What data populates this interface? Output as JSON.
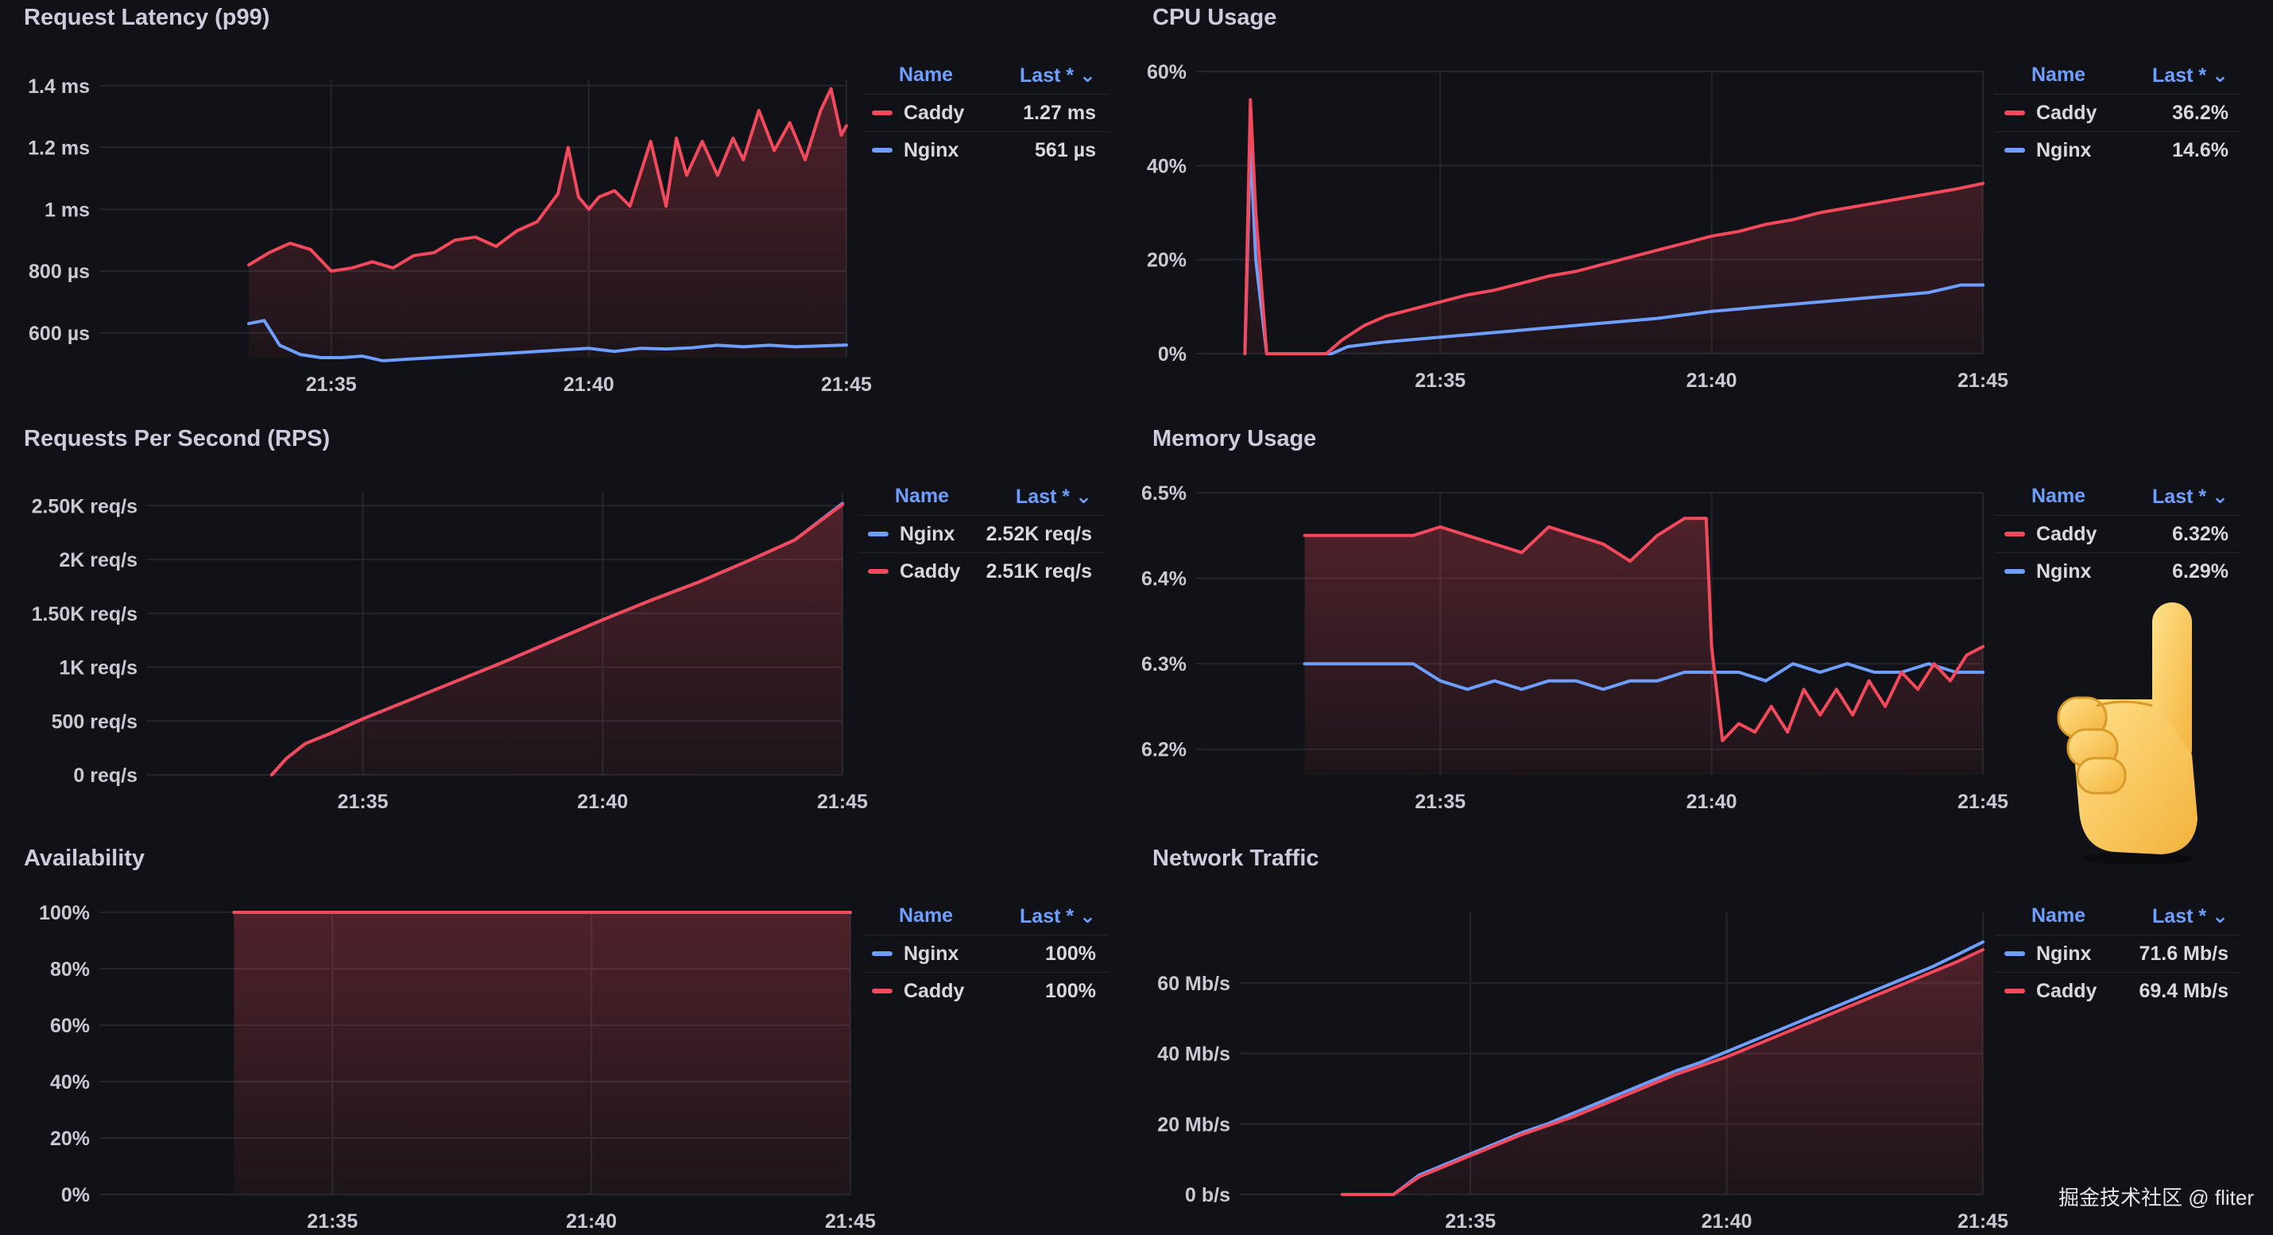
{
  "colors": {
    "caddy": "#f2495c",
    "nginx": "#6e9fff",
    "grid": "#24262d",
    "axis_text": "#c8c9d3"
  },
  "legend_headers": {
    "name": "Name",
    "last": "Last *"
  },
  "panels": {
    "latency": {
      "title": "Request Latency (p99)",
      "legend": [
        {
          "name": "Caddy",
          "value": "1.27 ms",
          "color": "#f2495c"
        },
        {
          "name": "Nginx",
          "value": "561 µs",
          "color": "#6e9fff"
        }
      ]
    },
    "cpu": {
      "title": "CPU Usage",
      "legend": [
        {
          "name": "Caddy",
          "value": "36.2%",
          "color": "#f2495c"
        },
        {
          "name": "Nginx",
          "value": "14.6%",
          "color": "#6e9fff"
        }
      ]
    },
    "rps": {
      "title": "Requests Per Second (RPS)",
      "legend": [
        {
          "name": "Nginx",
          "value": "2.52K req/s",
          "color": "#6e9fff"
        },
        {
          "name": "Caddy",
          "value": "2.51K req/s",
          "color": "#f2495c"
        }
      ]
    },
    "memory": {
      "title": "Memory Usage",
      "legend": [
        {
          "name": "Caddy",
          "value": "6.32%",
          "color": "#f2495c"
        },
        {
          "name": "Nginx",
          "value": "6.29%",
          "color": "#6e9fff"
        }
      ]
    },
    "availability": {
      "title": "Availability",
      "legend": [
        {
          "name": "Nginx",
          "value": "100%",
          "color": "#6e9fff"
        },
        {
          "name": "Caddy",
          "value": "100%",
          "color": "#f2495c"
        }
      ]
    },
    "network": {
      "title": "Network Traffic",
      "legend": [
        {
          "name": "Nginx",
          "value": "71.6 Mb/s",
          "color": "#6e9fff"
        },
        {
          "name": "Caddy",
          "value": "69.4 Mb/s",
          "color": "#f2495c"
        }
      ]
    }
  },
  "watermark": "掘金技术社区 @ fliter",
  "chart_data": [
    {
      "id": "latency",
      "type": "line",
      "title": "Request Latency (p99)",
      "xlim": [
        30.5,
        45
      ],
      "ylim": [
        520,
        1420
      ],
      "x_ticks": [
        35,
        40,
        45
      ],
      "x_tick_labels": [
        "21:35",
        "21:40",
        "21:45"
      ],
      "y_ticks": [
        600,
        800,
        1000,
        1200,
        1400
      ],
      "y_tick_labels": [
        "600 µs",
        "800 µs",
        "1 ms",
        "1.2 ms",
        "1.4 ms"
      ],
      "series": [
        {
          "name": "Caddy",
          "color": "#f2495c",
          "fill": true,
          "x": [
            33.4,
            33.8,
            34.2,
            34.6,
            35,
            35.4,
            35.8,
            36.2,
            36.6,
            37,
            37.4,
            37.8,
            38.2,
            38.6,
            39,
            39.4,
            39.6,
            39.8,
            40,
            40.2,
            40.5,
            40.8,
            41.2,
            41.5,
            41.7,
            41.9,
            42.2,
            42.5,
            42.8,
            43,
            43.3,
            43.6,
            43.9,
            44.2,
            44.5,
            44.7,
            44.9,
            45
          ],
          "y": [
            820,
            860,
            890,
            870,
            800,
            810,
            830,
            810,
            850,
            860,
            900,
            910,
            880,
            930,
            960,
            1050,
            1200,
            1040,
            1000,
            1040,
            1060,
            1010,
            1220,
            1010,
            1230,
            1110,
            1220,
            1110,
            1230,
            1160,
            1320,
            1190,
            1280,
            1160,
            1320,
            1390,
            1240,
            1270
          ]
        },
        {
          "name": "Nginx",
          "color": "#6e9fff",
          "fill": false,
          "x": [
            33.4,
            33.7,
            34,
            34.4,
            34.8,
            35.2,
            35.6,
            36,
            36.5,
            37,
            37.5,
            38,
            38.5,
            39,
            39.5,
            40,
            40.5,
            41,
            41.5,
            42,
            42.5,
            43,
            43.5,
            44,
            44.5,
            45
          ],
          "y": [
            630,
            640,
            560,
            530,
            520,
            520,
            525,
            510,
            515,
            520,
            525,
            530,
            535,
            540,
            545,
            550,
            540,
            550,
            548,
            552,
            560,
            555,
            560,
            555,
            558,
            561
          ]
        }
      ]
    },
    {
      "id": "cpu",
      "type": "line",
      "title": "CPU Usage",
      "xlim": [
        30.5,
        45
      ],
      "ylim": [
        0,
        60
      ],
      "x_ticks": [
        35,
        40,
        45
      ],
      "x_tick_labels": [
        "21:35",
        "21:40",
        "21:45"
      ],
      "y_ticks": [
        0,
        20,
        40,
        60
      ],
      "y_tick_labels": [
        "0%",
        "20%",
        "40%",
        "60%"
      ],
      "series": [
        {
          "name": "Caddy",
          "color": "#f2495c",
          "fill": true,
          "x": [
            31.4,
            31.5,
            31.6,
            31.8,
            32.2,
            32.6,
            32.9,
            33.2,
            33.6,
            34,
            34.5,
            35,
            35.5,
            36,
            36.5,
            37,
            37.5,
            38,
            38.5,
            39,
            39.5,
            40,
            40.5,
            41,
            41.5,
            42,
            42.5,
            43,
            43.5,
            44,
            44.5,
            45
          ],
          "y": [
            0,
            54,
            30,
            0,
            0,
            0,
            0,
            3,
            6,
            8,
            9.5,
            11,
            12.5,
            13.5,
            15,
            16.5,
            17.5,
            19,
            20.5,
            22,
            23.5,
            25,
            26,
            27.5,
            28.5,
            30,
            31,
            32,
            33,
            34,
            35,
            36.2
          ]
        },
        {
          "name": "Nginx",
          "color": "#6e9fff",
          "fill": false,
          "x": [
            31.4,
            31.5,
            31.6,
            31.8,
            32.2,
            32.6,
            33,
            33.3,
            34,
            35,
            36,
            37,
            38,
            39,
            40,
            41,
            42,
            43,
            44,
            44.6,
            45
          ],
          "y": [
            0,
            45,
            20,
            0,
            0,
            0,
            0,
            1.5,
            2.5,
            3.5,
            4.5,
            5.5,
            6.5,
            7.5,
            9,
            10,
            11,
            12,
            13,
            14.6,
            14.6
          ]
        }
      ]
    },
    {
      "id": "rps",
      "type": "line",
      "title": "Requests Per Second (RPS)",
      "xlim": [
        30.5,
        45
      ],
      "ylim": [
        0,
        2620
      ],
      "x_ticks": [
        35,
        40,
        45
      ],
      "x_tick_labels": [
        "21:35",
        "21:40",
        "21:45"
      ],
      "y_ticks": [
        0,
        500,
        1000,
        1500,
        2000,
        2500
      ],
      "y_tick_labels": [
        "0 req/s",
        "500 req/s",
        "1K req/s",
        "1.50K req/s",
        "2K req/s",
        "2.50K req/s"
      ],
      "series": [
        {
          "name": "Caddy",
          "color": "#f2495c",
          "fill": true,
          "x": [
            33.1,
            33.4,
            33.8,
            34.3,
            35,
            36,
            37,
            38,
            39,
            40,
            41,
            42,
            43,
            44,
            45
          ],
          "y": [
            0,
            150,
            290,
            380,
            520,
            700,
            880,
            1060,
            1250,
            1440,
            1620,
            1790,
            1980,
            2180,
            2510
          ]
        },
        {
          "name": "Nginx",
          "color": "#6e9fff",
          "fill": false,
          "x": [
            33.1,
            33.4,
            33.8,
            34.3,
            35,
            36,
            37,
            38,
            39,
            40,
            41,
            42,
            43,
            44,
            45
          ],
          "y": [
            0,
            150,
            290,
            380,
            520,
            700,
            880,
            1060,
            1250,
            1440,
            1620,
            1790,
            1980,
            2180,
            2520
          ]
        }
      ]
    },
    {
      "id": "memory",
      "type": "line",
      "title": "Memory Usage",
      "xlim": [
        30.5,
        45
      ],
      "ylim": [
        6.17,
        6.5
      ],
      "x_ticks": [
        35,
        40,
        45
      ],
      "x_tick_labels": [
        "21:35",
        "21:40",
        "21:45"
      ],
      "y_ticks": [
        6.2,
        6.3,
        6.4,
        6.5
      ],
      "y_tick_labels": [
        "6.2%",
        "6.3%",
        "6.4%",
        "6.5%"
      ],
      "series": [
        {
          "name": "Caddy",
          "color": "#f2495c",
          "fill": true,
          "x": [
            32.5,
            33.5,
            34.5,
            35,
            35.5,
            36,
            36.5,
            37,
            37.5,
            38,
            38.5,
            39,
            39.5,
            39.9,
            40,
            40.2,
            40.5,
            40.8,
            41.1,
            41.4,
            41.7,
            42,
            42.3,
            42.6,
            42.9,
            43.2,
            43.5,
            43.8,
            44.1,
            44.4,
            44.7,
            45
          ],
          "y": [
            6.45,
            6.45,
            6.45,
            6.46,
            6.45,
            6.44,
            6.43,
            6.46,
            6.45,
            6.44,
            6.42,
            6.45,
            6.47,
            6.47,
            6.32,
            6.21,
            6.23,
            6.22,
            6.25,
            6.22,
            6.27,
            6.24,
            6.27,
            6.24,
            6.28,
            6.25,
            6.29,
            6.27,
            6.3,
            6.28,
            6.31,
            6.32
          ]
        },
        {
          "name": "Nginx",
          "color": "#6e9fff",
          "fill": false,
          "x": [
            32.5,
            33.5,
            34.5,
            35,
            35.5,
            36,
            36.5,
            37,
            37.5,
            38,
            38.5,
            39,
            39.5,
            40,
            40.5,
            41,
            41.5,
            42,
            42.5,
            43,
            43.5,
            44,
            44.5,
            45
          ],
          "y": [
            6.3,
            6.3,
            6.3,
            6.28,
            6.27,
            6.28,
            6.27,
            6.28,
            6.28,
            6.27,
            6.28,
            6.28,
            6.29,
            6.29,
            6.29,
            6.28,
            6.3,
            6.29,
            6.3,
            6.29,
            6.29,
            6.3,
            6.29,
            6.29
          ]
        }
      ]
    },
    {
      "id": "availability",
      "type": "area",
      "title": "Availability",
      "xlim": [
        30.5,
        45
      ],
      "ylim": [
        0,
        100
      ],
      "x_ticks": [
        35,
        40,
        45
      ],
      "x_tick_labels": [
        "21:35",
        "21:40",
        "21:45"
      ],
      "y_ticks": [
        0,
        20,
        40,
        60,
        80,
        100
      ],
      "y_tick_labels": [
        "0%",
        "20%",
        "40%",
        "60%",
        "80%",
        "100%"
      ],
      "series": [
        {
          "name": "Caddy",
          "color": "#f2495c",
          "fill": true,
          "x": [
            33.1,
            45
          ],
          "y": [
            100,
            100
          ]
        },
        {
          "name": "Nginx",
          "color": "#6e9fff",
          "fill": false,
          "x": [
            33.1,
            45
          ],
          "y": [
            100,
            100
          ]
        }
      ]
    },
    {
      "id": "network",
      "type": "line",
      "title": "Network Traffic",
      "xlim": [
        30.5,
        45
      ],
      "ylim": [
        0,
        80
      ],
      "x_ticks": [
        35,
        40,
        45
      ],
      "x_tick_labels": [
        "21:35",
        "21:40",
        "21:45"
      ],
      "y_ticks": [
        0,
        20,
        40,
        60
      ],
      "y_tick_labels": [
        "0 b/s",
        "20 Mb/s",
        "40 Mb/s",
        "60 Mb/s"
      ],
      "series": [
        {
          "name": "Caddy",
          "color": "#f2495c",
          "fill": true,
          "x": [
            32.5,
            33.5,
            34,
            34.5,
            35,
            35.5,
            36,
            36.5,
            37,
            37.5,
            38,
            38.5,
            39,
            39.5,
            40,
            40.5,
            41,
            41.5,
            42,
            42.5,
            43,
            43.5,
            44,
            44.5,
            45
          ],
          "y": [
            0,
            0,
            5,
            8,
            11,
            14,
            17,
            19.5,
            22,
            25,
            28,
            31,
            34,
            36.5,
            39,
            42,
            45,
            48,
            51,
            54,
            57,
            60,
            63,
            66,
            69.4
          ]
        },
        {
          "name": "Nginx",
          "color": "#6e9fff",
          "fill": false,
          "x": [
            32.5,
            33.5,
            34,
            34.5,
            35,
            35.5,
            36,
            36.5,
            37,
            37.5,
            38,
            38.5,
            39,
            39.5,
            40,
            40.5,
            41,
            41.5,
            42,
            42.5,
            43,
            43.5,
            44,
            44.5,
            45
          ],
          "y": [
            0,
            0,
            5.5,
            8.5,
            11.5,
            14.5,
            17.5,
            20,
            23,
            26,
            29,
            32,
            35,
            37.5,
            40.5,
            43.5,
            46.5,
            49.5,
            52.5,
            55.5,
            58.5,
            61.5,
            64.5,
            68,
            71.6
          ]
        }
      ]
    }
  ]
}
